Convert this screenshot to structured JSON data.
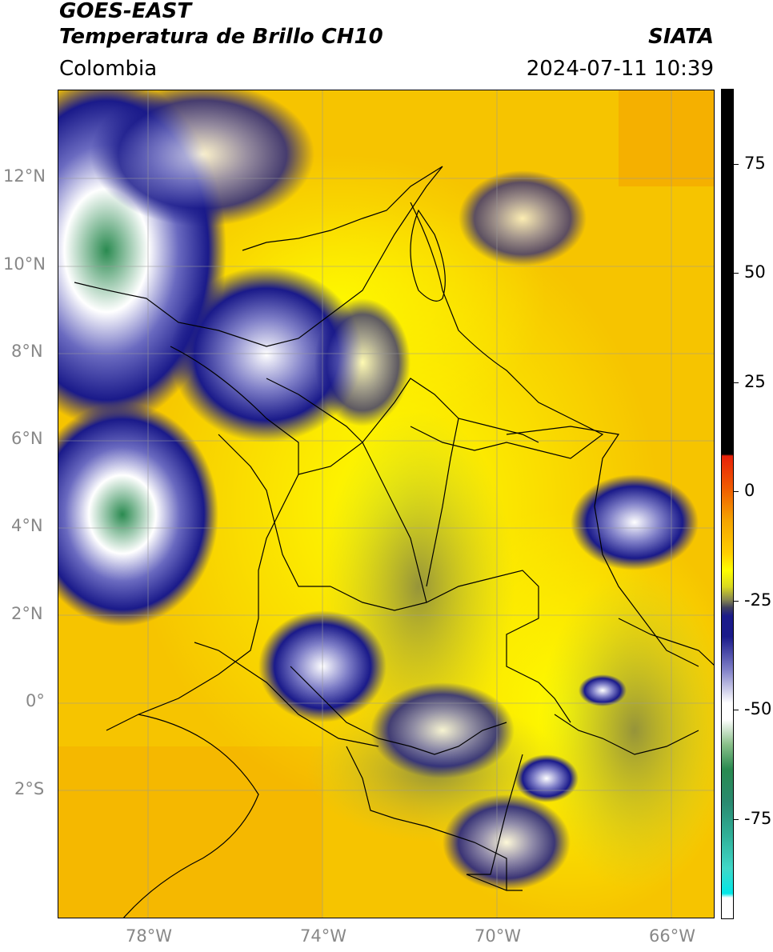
{
  "header": {
    "satellite": "GOES-EAST",
    "product": "Temperatura de Brillo CH10",
    "region": "Colombia",
    "agency": "SIATA",
    "datetime": "2024-07-11 10:39"
  },
  "map": {
    "lat_labels": [
      "12°N",
      "10°N",
      "8°N",
      "6°N",
      "4°N",
      "2°N",
      "0°",
      "2°S"
    ],
    "lon_labels": [
      "78°W",
      "74°W",
      "70°W",
      "66°W"
    ]
  },
  "colorbar": {
    "ticks": [
      "75",
      "50",
      "25",
      "0",
      "-25",
      "-50",
      "-75"
    ],
    "colors": {
      "black": "#000000",
      "red": "#e8210a",
      "orange": "#f5a400",
      "yellow": "#ffff00",
      "olive": "#a8a840",
      "navy": "#1a1a8a",
      "white": "#ffffff",
      "green": "#2a8a50",
      "teal": "#30c0a0",
      "cyan": "#00e8e8"
    }
  }
}
